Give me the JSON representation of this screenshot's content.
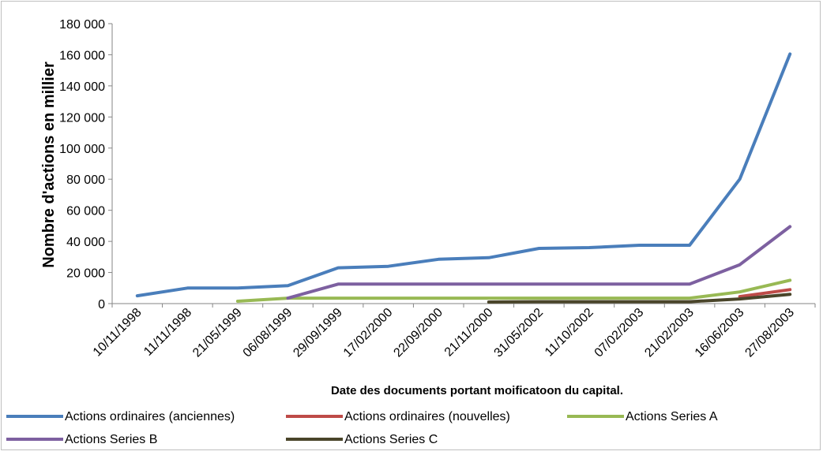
{
  "chart_data": {
    "type": "line",
    "title": "",
    "xlabel": "Date des documents portant moificatoon du capital.",
    "ylabel": "Nombre d'actions en millier",
    "ylim": [
      0,
      180000
    ],
    "yticks": [
      "0",
      "20 000",
      "40 000",
      "60 000",
      "80 000",
      "100 000",
      "120 000",
      "140 000",
      "160 000",
      "180 000"
    ],
    "categories": [
      "10/11/1998",
      "11/11/1998",
      "21/05/1999",
      "06/08/1999",
      "29/09/1999",
      "17/02/2000",
      "22/09/2000",
      "21/11/2000",
      "31/05/2002",
      "11/10/2002",
      "07/02/2003",
      "21/02/2003",
      "16/06/2003",
      "27/08/2003"
    ],
    "grid": false,
    "legend_position": "bottom",
    "series": [
      {
        "name": "Actions ordinaires (anciennes)",
        "color": "#4a7ebb",
        "values": [
          5000,
          10000,
          10000,
          11500,
          23000,
          24000,
          28500,
          29500,
          35500,
          36000,
          37500,
          37500,
          80000,
          160500
        ]
      },
      {
        "name": "Actions ordinaires (nouvelles)",
        "color": "#be4b48",
        "values": [
          null,
          null,
          null,
          null,
          null,
          null,
          null,
          null,
          null,
          null,
          null,
          null,
          4500,
          9000
        ]
      },
      {
        "name": "Actions Series A",
        "color": "#98b954",
        "values": [
          null,
          null,
          1500,
          3500,
          3500,
          3500,
          3500,
          3500,
          3500,
          3500,
          3500,
          3500,
          7500,
          15000
        ]
      },
      {
        "name": "Actions Series B",
        "color": "#7d60a0",
        "values": [
          null,
          null,
          null,
          3500,
          12500,
          12500,
          12500,
          12500,
          12500,
          12500,
          12500,
          12500,
          25000,
          49500
        ]
      },
      {
        "name": "Actions Series C",
        "color": "#4a452a",
        "values": [
          null,
          null,
          null,
          null,
          null,
          null,
          null,
          1000,
          1200,
          1200,
          1200,
          1200,
          3000,
          6000
        ]
      }
    ]
  }
}
